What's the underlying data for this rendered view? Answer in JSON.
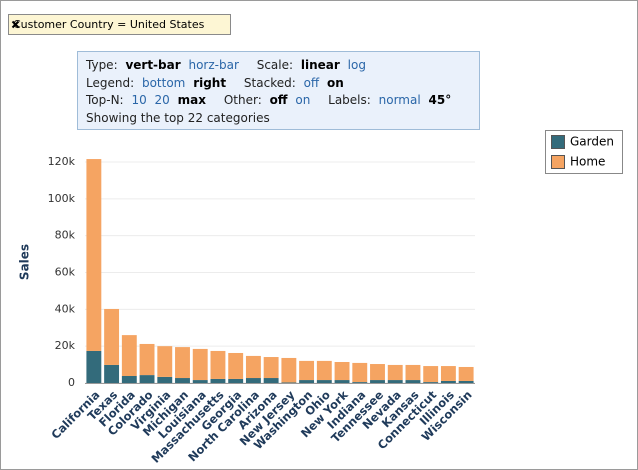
{
  "filter": {
    "label": "Customer Country = United States"
  },
  "controls": {
    "type_label": "Type:",
    "type_options": [
      "vert-bar",
      "horz-bar"
    ],
    "scale_label": "Scale:",
    "scale_options": [
      "linear",
      "log"
    ],
    "legend_label": "Legend:",
    "legend_options": [
      "bottom",
      "right"
    ],
    "stacked_label": "Stacked:",
    "stacked_options": [
      "off",
      "on"
    ],
    "topn_label": "Top-N:",
    "topn_options": [
      "10",
      "20",
      "max"
    ],
    "other_label": "Other:",
    "other_options": [
      "off",
      "on"
    ],
    "labels_label": "Labels:",
    "labels_options": [
      "normal",
      "45°"
    ],
    "status": "Showing the top 22 categories"
  },
  "chart_data": {
    "type": "bar",
    "stacked": true,
    "legend": "right",
    "grid": true,
    "y_label": "Sales",
    "categories": [
      "California",
      "Texas",
      "Florida",
      "Colorado",
      "Virginia",
      "Michigan",
      "Louisiana",
      "Massachusetts",
      "Georgia",
      "North Carolina",
      "Arizona",
      "New Jersey",
      "Washington",
      "Ohio",
      "New York",
      "Indiana",
      "Tennessee",
      "Nevada",
      "Kansas",
      "Connecticut",
      "Illinois",
      "Wisconsin"
    ],
    "series": [
      {
        "name": "Garden",
        "color": "#336b7b",
        "values": [
          17400,
          9800,
          3800,
          4300,
          3300,
          2700,
          1600,
          2200,
          2200,
          2700,
          2700,
          300,
          1600,
          1600,
          1600,
          500,
          1600,
          1600,
          1600,
          500,
          1100,
          1100
        ]
      },
      {
        "name": "Home",
        "color": "#f5a462",
        "values": [
          104200,
          30400,
          22200,
          16900,
          16700,
          16800,
          16900,
          15200,
          14100,
          12000,
          11400,
          13300,
          10400,
          10400,
          9800,
          10400,
          8700,
          8200,
          8200,
          8700,
          8100,
          7600
        ]
      }
    ],
    "ylim": [
      0,
      120000
    ],
    "yticks": [
      0,
      {
        "value": 20000,
        "label": "20k"
      },
      {
        "value": 40000,
        "label": "40k"
      },
      {
        "value": 60000,
        "label": "60k"
      },
      {
        "value": 80000,
        "label": "80k"
      },
      {
        "value": 100000,
        "label": "100k"
      },
      {
        "value": 120000,
        "label": "120k"
      }
    ]
  }
}
